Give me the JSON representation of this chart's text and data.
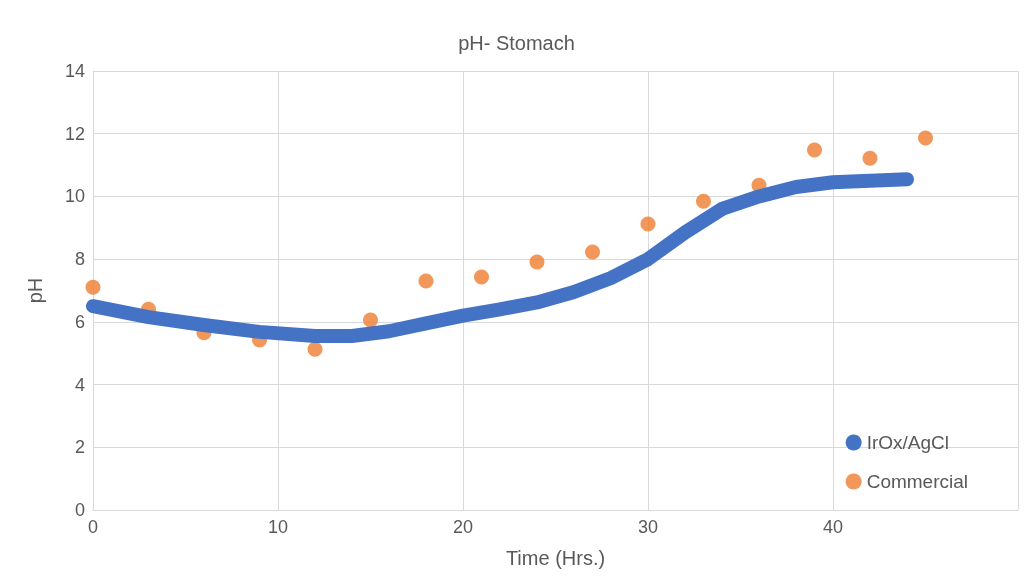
{
  "chart_data": {
    "type": "scatter",
    "title": "pH- Stomach",
    "xlabel": "Time (Hrs.)",
    "ylabel": "pH",
    "xlim": [
      0,
      50
    ],
    "xticks": [
      0,
      10,
      20,
      30,
      40,
      {
        "value": 50,
        "label": null
      }
    ],
    "ylim": [
      0,
      14
    ],
    "yticks": [
      0,
      2,
      4,
      6,
      8,
      10,
      12,
      14
    ],
    "grid": true,
    "legend": "bottom right",
    "series": [
      {
        "name": "IrOx/AgCl",
        "type": "line",
        "marker": "none",
        "color": "#4472c4",
        "x": [
          0,
          3,
          6,
          9,
          12,
          14,
          16,
          18,
          20,
          22,
          24,
          26,
          28,
          30,
          32,
          34,
          36,
          38,
          40,
          42,
          44
        ],
        "values": [
          6.5,
          6.15,
          5.9,
          5.68,
          5.55,
          5.55,
          5.7,
          5.95,
          6.2,
          6.4,
          6.62,
          6.95,
          7.4,
          8.0,
          8.85,
          9.6,
          10.0,
          10.3,
          10.45,
          10.5,
          10.55
        ]
      },
      {
        "name": "Commercial",
        "marker": "circle",
        "color": "#ed7d31",
        "x": [
          0,
          3,
          6,
          9,
          12,
          15,
          18,
          21,
          24,
          27,
          30,
          33,
          36,
          39,
          42,
          45
        ],
        "values": [
          7.1,
          6.4,
          5.65,
          5.42,
          5.13,
          6.06,
          7.3,
          7.43,
          7.91,
          8.23,
          9.12,
          9.85,
          10.36,
          11.48,
          11.22,
          11.86
        ]
      }
    ]
  }
}
